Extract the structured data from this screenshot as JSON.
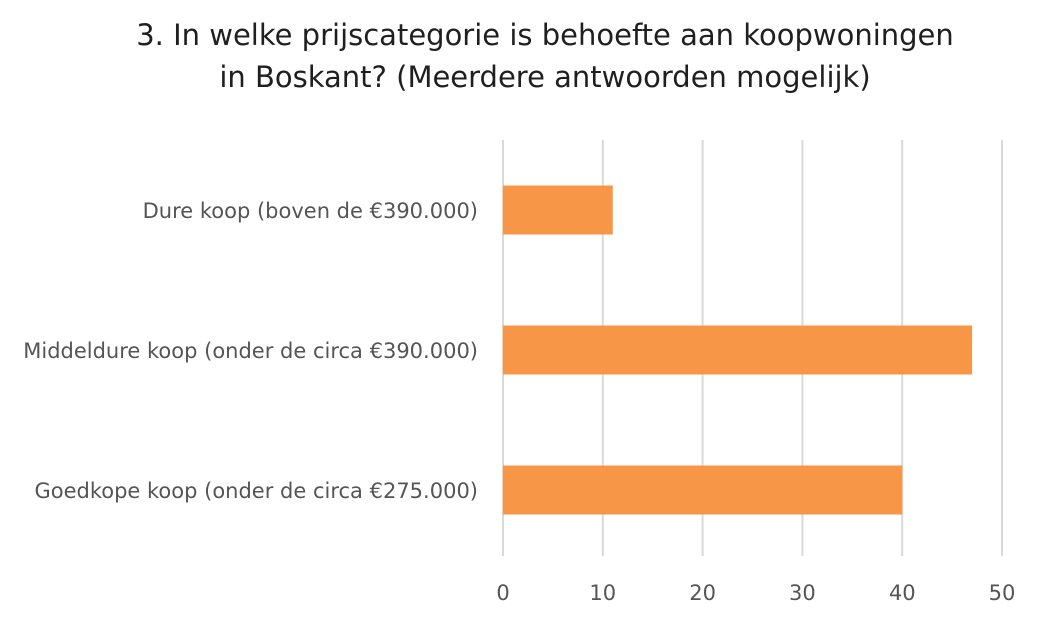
{
  "chart_data": {
    "type": "bar",
    "orientation": "horizontal",
    "title_lines": [
      "3. In welke prijscategorie is behoefte aan koopwoningen",
      "in Boskant? (Meerdere antwoorden mogelijk)"
    ],
    "categories": [
      "Dure koop (boven de €390.000)",
      "Middeldure koop (onder de circa €390.000)",
      "Goedkope koop (onder de circa €275.000)"
    ],
    "values": [
      11,
      47,
      40
    ],
    "xlim": [
      0,
      50
    ],
    "xticks": [
      "0",
      "10",
      "20",
      "30",
      "40",
      "50"
    ],
    "grid": true,
    "bar_color": "#F79646",
    "grid_color": "#D9D9D9"
  }
}
